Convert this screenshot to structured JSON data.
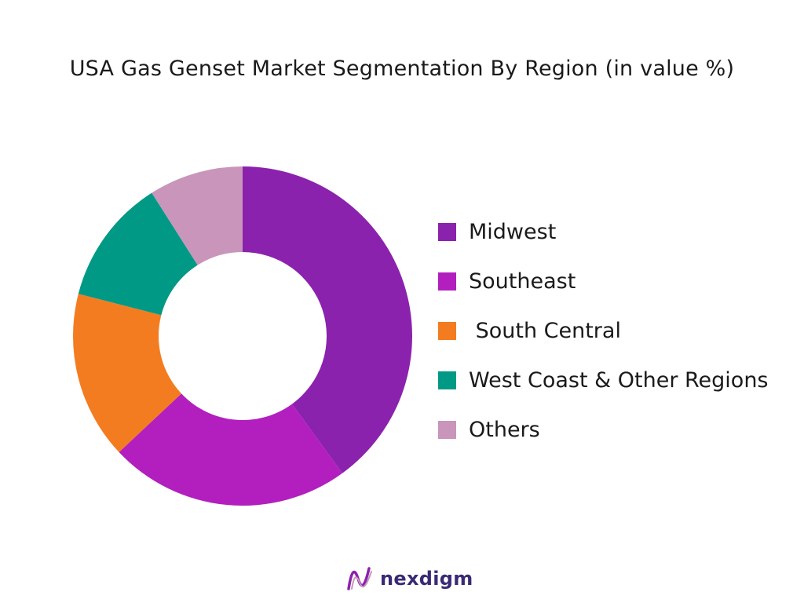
{
  "chart_data": {
    "type": "pie",
    "title": "USA Gas Genset Market Segmentation By Region (in value %)",
    "donut": true,
    "legend_position": "right",
    "categories": [
      "Midwest",
      "Southeast",
      " South Central",
      "West Coast & Other Regions",
      "Others"
    ],
    "values": [
      40,
      23,
      16,
      12,
      9
    ],
    "colors": [
      "#8b22ad",
      "#b21fbe",
      "#f47c20",
      "#009985",
      "#c995bb"
    ]
  },
  "brand": {
    "name": "nexdigm",
    "logo_icon": "nexdigm-wave-logo-icon",
    "logo_color": "#8b22ad"
  }
}
